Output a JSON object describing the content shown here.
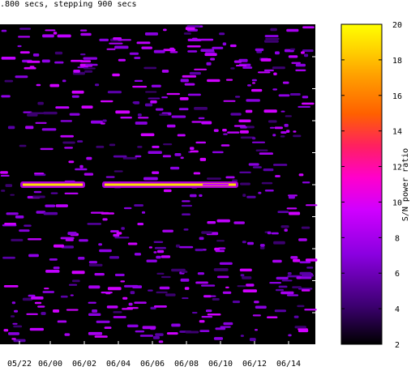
{
  "title": ".800 secs, stepping 900 secs",
  "chart_data": {
    "type": "heatmap",
    "title": ".800 secs, stepping 900 secs",
    "xlabel": "",
    "ylabel": "",
    "x_tick_labels": [
      "05/22",
      "06/00",
      "06/02",
      "06/04",
      "06/06",
      "06/08",
      "06/10",
      "06/12",
      "06/14"
    ],
    "colorbar": {
      "label": "S/N power ratio",
      "range": [
        2,
        20
      ],
      "ticks": [
        2,
        4,
        6,
        8,
        10,
        12,
        14,
        16,
        18,
        20
      ],
      "colors": [
        "#000000",
        "#3c0070",
        "#8a00e0",
        "#d000ff",
        "#ff00cc",
        "#ff2060",
        "#ff6000",
        "#ffa000",
        "#ffd800",
        "#ffff00"
      ]
    },
    "background_color": "#000000",
    "strong_signal": {
      "description_value": 20,
      "segments": [
        [
          "05/22",
          "06/00"
        ],
        [
          "06/03",
          "06/09"
        ]
      ]
    }
  }
}
